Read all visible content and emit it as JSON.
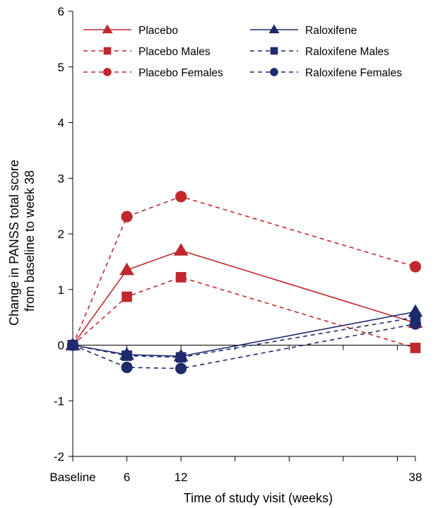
{
  "chart_data": {
    "type": "line",
    "title": "",
    "xlabel": "Time of study visit (weeks)",
    "ylabel_lines": [
      "Change in PANSS total score",
      "from baseline to week 38"
    ],
    "x_domain": [
      0,
      38
    ],
    "x_ticks": [
      {
        "value": 0,
        "label": "Baseline"
      },
      {
        "value": 6,
        "label": "6"
      },
      {
        "value": 12,
        "label": "12"
      },
      {
        "value": 18,
        "label": ""
      },
      {
        "value": 24,
        "label": ""
      },
      {
        "value": 30,
        "label": ""
      },
      {
        "value": 36,
        "label": ""
      },
      {
        "value": 38,
        "label": "38"
      }
    ],
    "ylim": [
      -2,
      6
    ],
    "y_ticks": [
      -2,
      -1,
      0,
      1,
      2,
      3,
      4,
      5,
      6
    ],
    "grid": false,
    "legend_position": "top",
    "colors": {
      "placebo": "#C0282D",
      "raloxifene": "#1F2A6B"
    },
    "series": [
      {
        "name": "Placebo",
        "group": "placebo",
        "dash": "solid",
        "marker": "triangle",
        "x": [
          0,
          6,
          12,
          38
        ],
        "y": [
          0,
          1.35,
          1.7,
          0.4
        ]
      },
      {
        "name": "Raloxifene",
        "group": "raloxifene",
        "dash": "solid",
        "marker": "triangle",
        "x": [
          0,
          6,
          12,
          38
        ],
        "y": [
          0,
          -0.17,
          -0.2,
          0.6
        ]
      },
      {
        "name": "Placebo Males",
        "group": "placebo",
        "dash": "dashed",
        "marker": "square",
        "x": [
          0,
          6,
          12,
          38
        ],
        "y": [
          0,
          0.87,
          1.22,
          -0.05
        ]
      },
      {
        "name": "Raloxifene Males",
        "group": "raloxifene",
        "dash": "dashed",
        "marker": "square",
        "x": [
          0,
          6,
          12,
          38
        ],
        "y": [
          0,
          -0.19,
          -0.22,
          0.5
        ]
      },
      {
        "name": "Placebo Females",
        "group": "placebo",
        "dash": "dashed",
        "marker": "circle",
        "x": [
          0,
          6,
          12,
          38
        ],
        "y": [
          0,
          2.31,
          2.67,
          1.41
        ]
      },
      {
        "name": "Raloxifene Females",
        "group": "raloxifene",
        "dash": "dashed",
        "marker": "circle",
        "x": [
          0,
          6,
          12,
          38
        ],
        "y": [
          0,
          -0.4,
          -0.42,
          0.38
        ]
      }
    ],
    "legend_order": [
      "Placebo",
      "Raloxifene",
      "Placebo Males",
      "Raloxifene Males",
      "Placebo Females",
      "Raloxifene Females"
    ]
  }
}
